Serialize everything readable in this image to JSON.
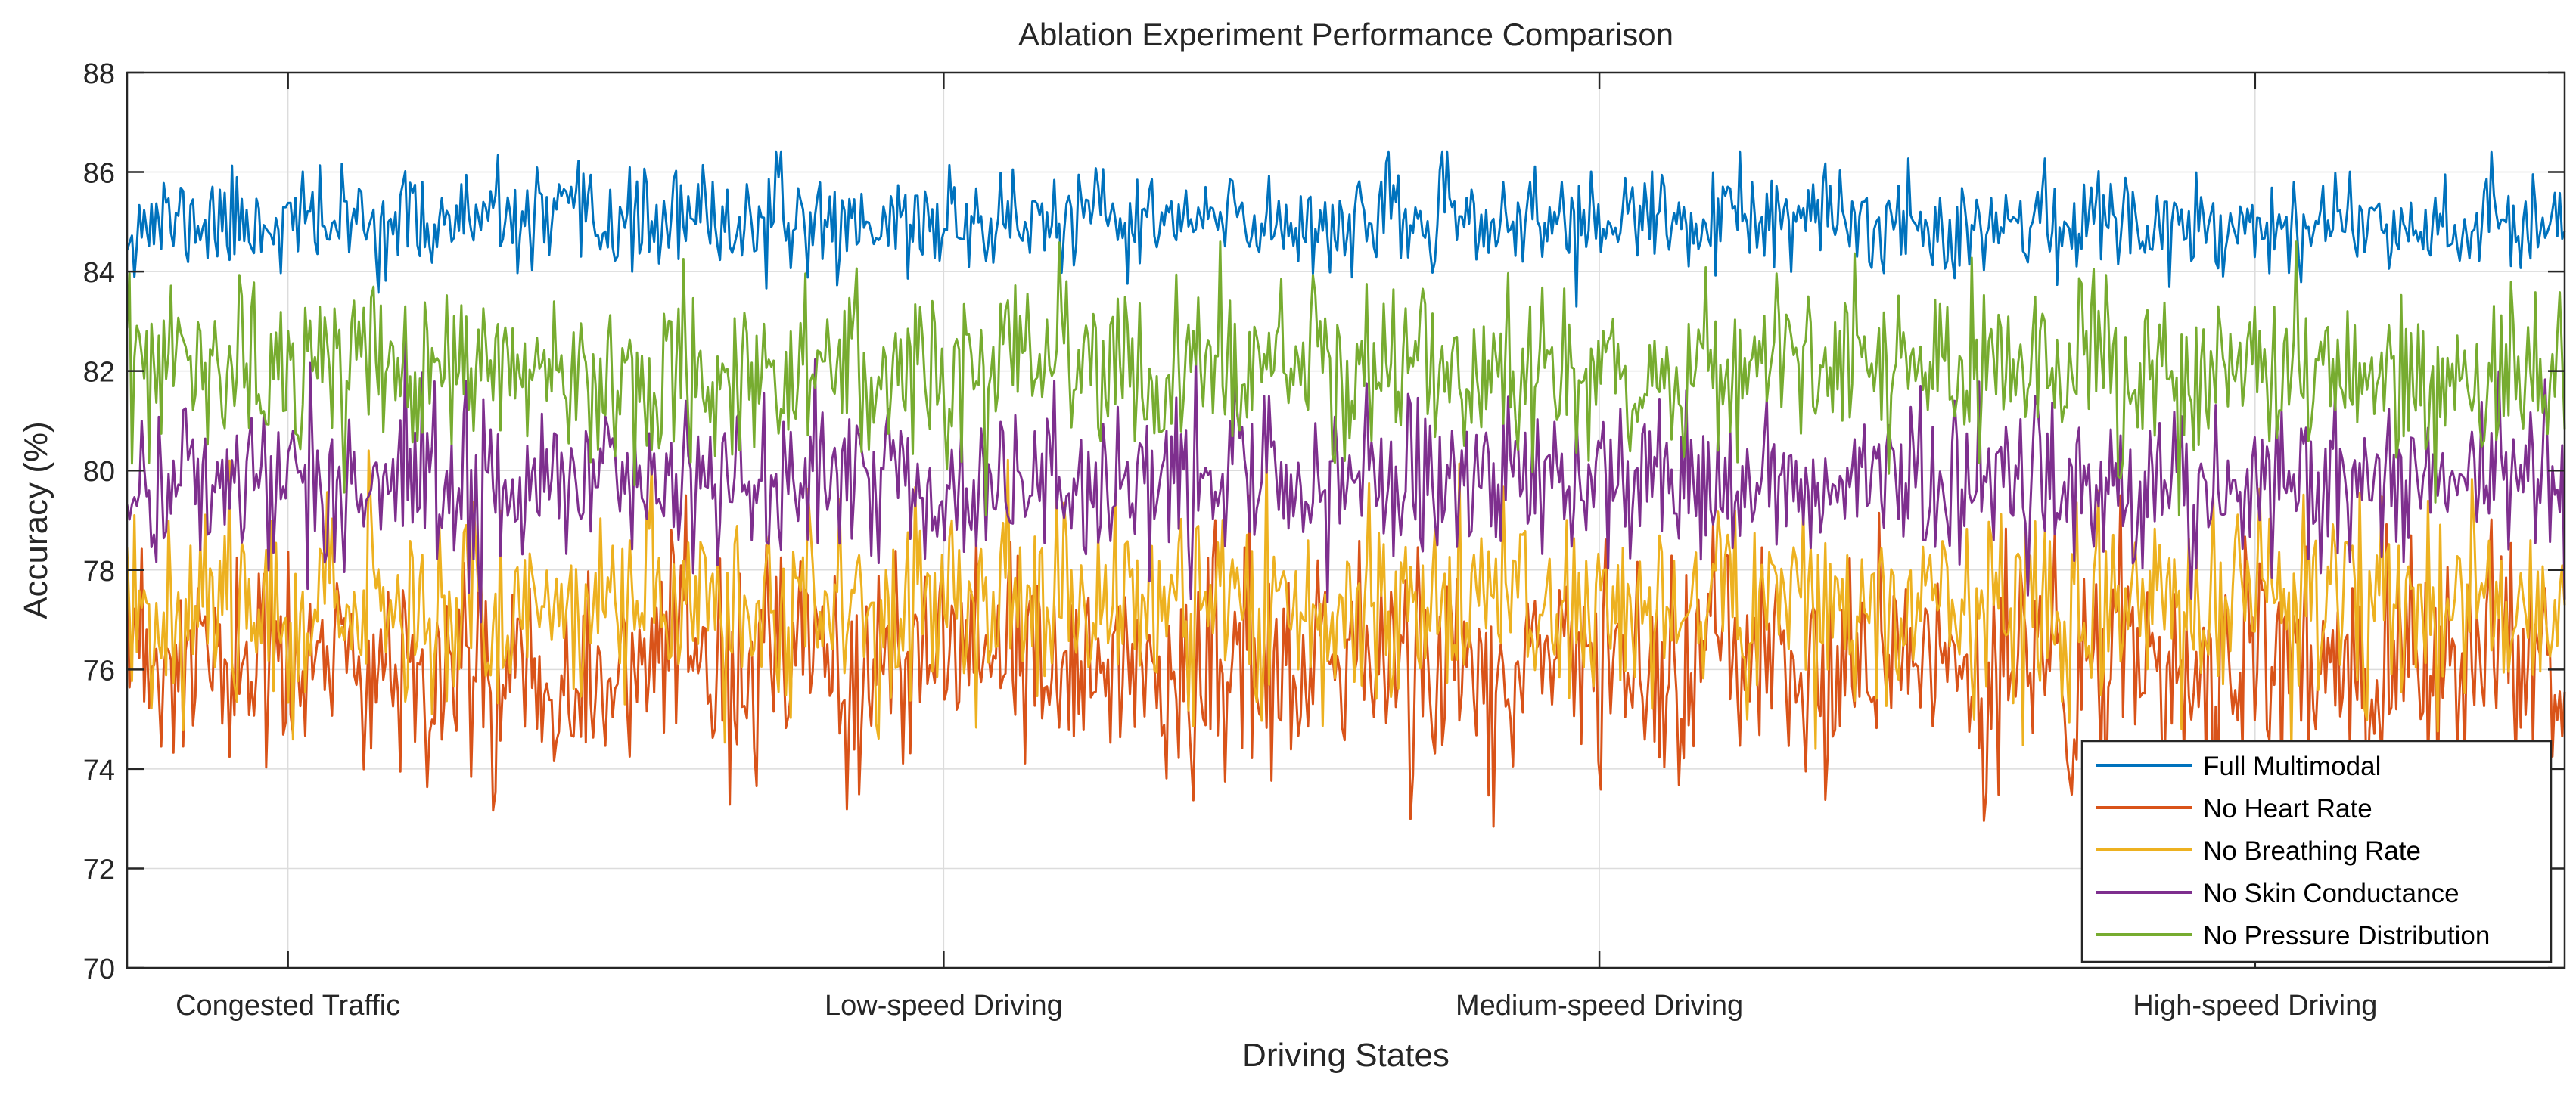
{
  "chart_data": {
    "type": "line",
    "title": "Ablation Experiment Performance Comparison",
    "xlabel": "Driving States",
    "ylabel": "Accuracy (%)",
    "ylim": [
      70,
      88
    ],
    "yticks": [
      70,
      72,
      74,
      76,
      78,
      80,
      82,
      84,
      86,
      88
    ],
    "xlim": [
      0,
      1000
    ],
    "categories": [
      "Congested Traffic",
      "Low-speed Driving",
      "Medium-speed Driving",
      "High-speed Driving"
    ],
    "category_x": [
      66,
      335,
      604,
      873
    ],
    "points_per_series": 1000,
    "grid": true,
    "legend_position": "bottom-right",
    "series": [
      {
        "name": "Full Multimodal",
        "color": "#0072BD",
        "mean": 85.0,
        "std": 0.5,
        "min": 83.3,
        "max": 86.4,
        "seed": 11
      },
      {
        "name": "No Heart Rate",
        "color": "#D95319",
        "mean": 76.0,
        "std": 1.1,
        "min": 71.8,
        "max": 79.5,
        "seed": 23
      },
      {
        "name": "No Breathing Rate",
        "color": "#EDB120",
        "mean": 77.3,
        "std": 1.0,
        "min": 73.9,
        "max": 80.4,
        "seed": 37
      },
      {
        "name": "No Skin Conductance",
        "color": "#7E2F8E",
        "mean": 79.8,
        "std": 0.85,
        "min": 76.6,
        "max": 83.9,
        "seed": 41
      },
      {
        "name": "No Pressure Distribution",
        "color": "#77AC30",
        "mean": 82.0,
        "std": 0.85,
        "min": 79.0,
        "max": 84.6,
        "seed": 53
      }
    ]
  }
}
